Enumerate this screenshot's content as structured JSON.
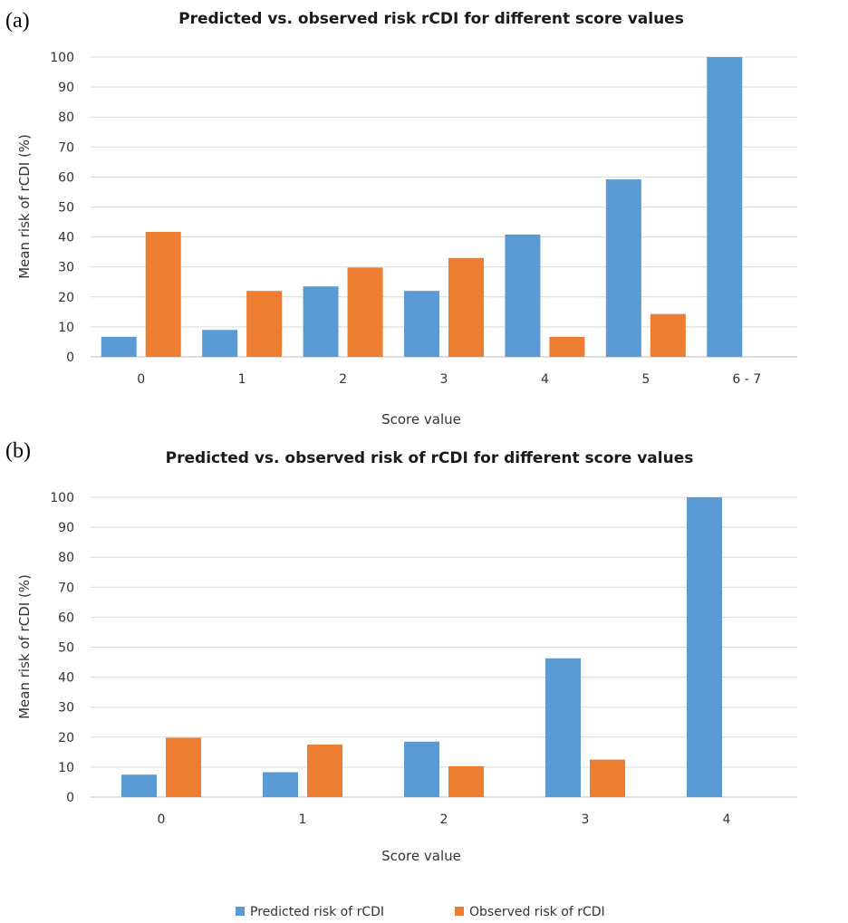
{
  "colors": {
    "predicted": "#5b9bd5",
    "observed": "#ed7d31"
  },
  "legend": {
    "placement": "bottom-center",
    "predicted_label": "Predicted risk of rCDI",
    "observed_label": "Observed risk of rCDI"
  },
  "chart_data": [
    {
      "type": "bar",
      "panel_label": "(a)",
      "title": "Predicted vs. observed risk rCDI  for different score values",
      "xlabel": "Score value",
      "ylabel": "Mean risk of rCDI (%)",
      "ylim": [
        0,
        100
      ],
      "yticks": [
        0,
        10,
        20,
        30,
        40,
        50,
        60,
        70,
        80,
        90,
        100
      ],
      "grid": true,
      "categories": [
        "0",
        "1",
        "2",
        "3",
        "4",
        "5",
        "6 - 7"
      ],
      "series": [
        {
          "name": "Predicted risk of rCDI",
          "values": [
            6.7,
            9,
            23.5,
            22,
            40.8,
            59.2,
            100
          ]
        },
        {
          "name": "Observed risk of rCDI",
          "values": [
            41.7,
            22,
            29.8,
            33,
            6.7,
            14.3,
            null
          ]
        }
      ]
    },
    {
      "type": "bar",
      "panel_label": "(b)",
      "title": "Predicted vs. observed risk of rCDI  for different score values",
      "xlabel": "Score value",
      "ylabel": "Mean risk of rCDI (%)",
      "ylim": [
        0,
        100
      ],
      "yticks": [
        0,
        10,
        20,
        30,
        40,
        50,
        60,
        70,
        80,
        90,
        100
      ],
      "grid": true,
      "categories": [
        "0",
        "1",
        "2",
        "3",
        "4"
      ],
      "series": [
        {
          "name": "Predicted risk of rCDI",
          "values": [
            7.5,
            8.3,
            18.5,
            46.3,
            100
          ]
        },
        {
          "name": "Observed risk of rCDI",
          "values": [
            19.8,
            17.5,
            10.3,
            12.5,
            null
          ]
        }
      ]
    }
  ]
}
